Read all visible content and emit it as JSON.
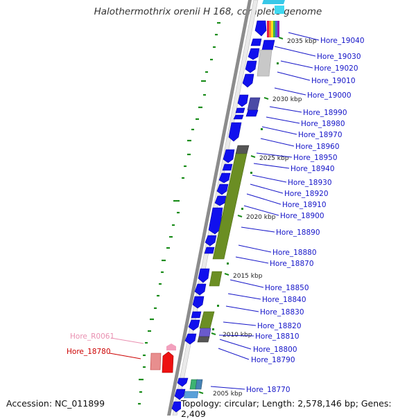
{
  "title": "Halothermothrix orenii H 168, complete genome",
  "footer": {
    "accession": "Accession: NC_011899",
    "summary": "Topology: circular; Length: 2,578,146 bp; Genes: 2,409"
  },
  "colors": {
    "gene_blue": "#1010ee",
    "rna_green": "#6b8e23",
    "label_blue": "#1414c8",
    "label_red": "#cc0000",
    "label_pink": "#e98fb0",
    "tick_green": "#1a8c1a",
    "backbone": "#8c8c8c"
  },
  "scale_labels": [
    "2035 kbp",
    "2030 kbp",
    "2025 kbp",
    "2020 kbp",
    "2015 kbp",
    "2010 kbp",
    "2005 kbp"
  ],
  "gene_labels": [
    "Hore_19040",
    "Hore_19030",
    "Hore_19020",
    "Hore_19010",
    "Hore_19000",
    "Hore_18990",
    "Hore_18980",
    "Hore_18970",
    "Hore_18960",
    "Hore_18950",
    "Hore_18940",
    "Hore_18930",
    "Hore_18920",
    "Hore_18910",
    "Hore_18900",
    "Hore_18890",
    "Hore_18880",
    "Hore_18870",
    "Hore_18850",
    "Hore_18840",
    "Hore_18830",
    "Hore_18820",
    "Hore_18810",
    "Hore_18800",
    "Hore_18790",
    "Hore_18770"
  ],
  "left_labels": [
    "Hore_R0061",
    "Hore_18780"
  ]
}
